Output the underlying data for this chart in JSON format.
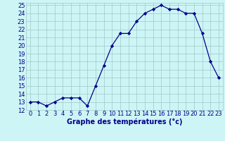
{
  "hours": [
    0,
    1,
    2,
    3,
    4,
    5,
    6,
    7,
    8,
    9,
    10,
    11,
    12,
    13,
    14,
    15,
    16,
    17,
    18,
    19,
    20,
    21,
    22,
    23
  ],
  "temps": [
    13,
    13,
    12.5,
    13,
    13.5,
    13.5,
    13.5,
    12.5,
    15,
    17.5,
    20,
    21.5,
    21.5,
    23,
    24,
    24.5,
    25,
    24.5,
    24.5,
    24,
    24,
    21.5,
    18,
    16
  ],
  "xlabel": "Graphe des températures (°c)",
  "ylim": [
    12,
    25
  ],
  "xlim_min": -0.5,
  "xlim_max": 23.5,
  "yticks": [
    12,
    13,
    14,
    15,
    16,
    17,
    18,
    19,
    20,
    21,
    22,
    23,
    24,
    25
  ],
  "xticks": [
    0,
    1,
    2,
    3,
    4,
    5,
    6,
    7,
    8,
    9,
    10,
    11,
    12,
    13,
    14,
    15,
    16,
    17,
    18,
    19,
    20,
    21,
    22,
    23
  ],
  "line_color": "#00008b",
  "marker": "D",
  "marker_size": 2.2,
  "bg_color": "#cef5f5",
  "grid_color": "#a0c8c8",
  "label_color": "#00008b",
  "tick_color": "#00008b",
  "xlabel_fontsize": 7,
  "tick_fontsize": 6,
  "line_width": 0.9
}
